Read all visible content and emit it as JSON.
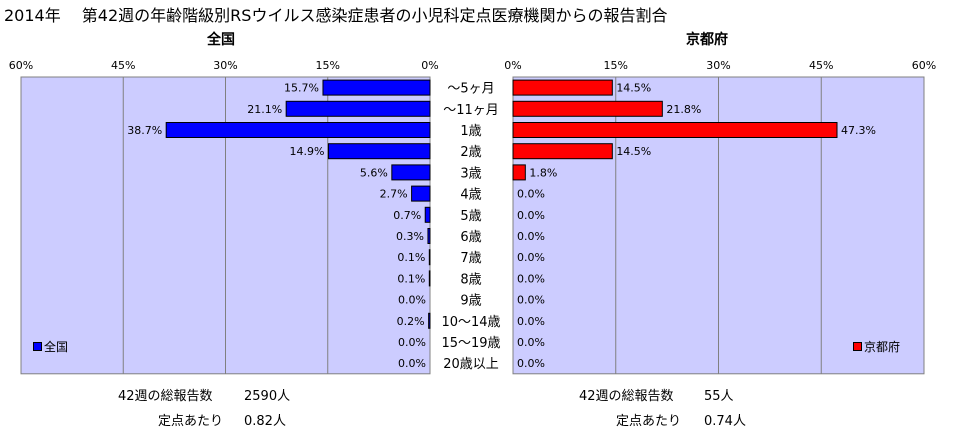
{
  "title": "2014年　 第42週の年齢階級別RSウイルス感染症患者の小児科定点医療機関からの報告割合",
  "colors": {
    "national": "#0000ff",
    "kyoto": "#ff0000",
    "plot_bg": "#ccccff",
    "grid": "#808080"
  },
  "chart_data": [
    {
      "type": "bar",
      "orientation": "horizontal",
      "title": "全国",
      "legend": "全国",
      "legend_position": "bottom-left",
      "xlim": [
        0,
        60
      ],
      "x_reversed": true,
      "x_ticks": [
        "0%",
        "15%",
        "30%",
        "45%",
        "60%"
      ],
      "categories": [
        "～5ヶ月",
        "～11ヶ月",
        "1歳",
        "2歳",
        "3歳",
        "4歳",
        "5歳",
        "6歳",
        "7歳",
        "8歳",
        "9歳",
        "10～14歳",
        "15～19歳",
        "20歳以上"
      ],
      "values": [
        15.7,
        21.1,
        38.7,
        14.9,
        5.6,
        2.7,
        0.7,
        0.3,
        0.1,
        0.1,
        0.0,
        0.2,
        0.0,
        0.0
      ],
      "value_labels": [
        "15.7%",
        "21.1%",
        "38.7%",
        "14.9%",
        "5.6%",
        "2.7%",
        "0.7%",
        "0.3%",
        "0.1%",
        "0.1%",
        "0.0%",
        "0.2%",
        "0.0%",
        "0.0%"
      ],
      "grid": true
    },
    {
      "type": "bar",
      "orientation": "horizontal",
      "title": "京都府",
      "legend": "京都府",
      "legend_position": "bottom-right",
      "xlim": [
        0,
        60
      ],
      "x_ticks": [
        "0%",
        "15%",
        "30%",
        "45%",
        "60%"
      ],
      "categories": [
        "～5ヶ月",
        "～11ヶ月",
        "1歳",
        "2歳",
        "3歳",
        "4歳",
        "5歳",
        "6歳",
        "7歳",
        "8歳",
        "9歳",
        "10～14歳",
        "15～19歳",
        "20歳以上"
      ],
      "values": [
        14.5,
        21.8,
        47.3,
        14.5,
        1.8,
        0.0,
        0.0,
        0.0,
        0.0,
        0.0,
        0.0,
        0.0,
        0.0,
        0.0
      ],
      "value_labels": [
        "14.5%",
        "21.8%",
        "47.3%",
        "14.5%",
        "1.8%",
        "0.0%",
        "0.0%",
        "0.0%",
        "0.0%",
        "0.0%",
        "0.0%",
        "0.0%",
        "0.0%",
        "0.0%"
      ],
      "grid": true
    }
  ],
  "footer": {
    "national_total_label": "42週の総報告数",
    "national_total_value": "2590人",
    "national_per_label": "定点あたり",
    "national_per_value": "0.82人",
    "kyoto_total_label": "42週の総報告数",
    "kyoto_total_value": "55人",
    "kyoto_per_label": "定点あたり",
    "kyoto_per_value": "0.74人"
  }
}
